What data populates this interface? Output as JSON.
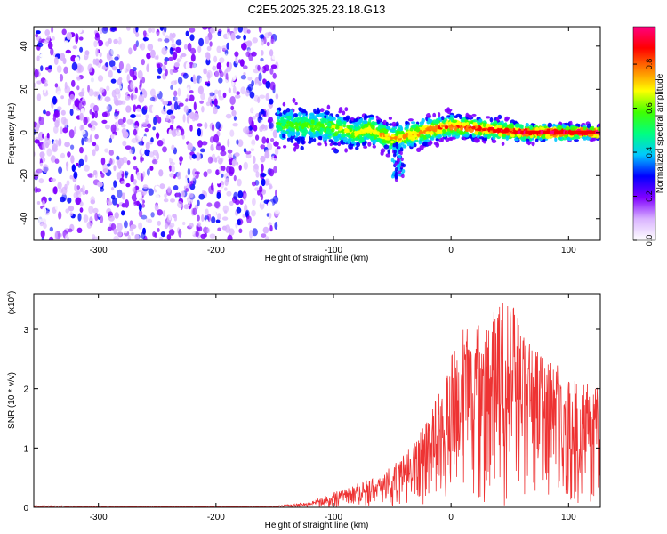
{
  "figure": {
    "title": "C2E5.2025.325.23.18.G13"
  },
  "chart_data": [
    {
      "type": "heatmap",
      "title": "C2E5.2025.325.23.18.G13",
      "xlabel": "Height of straight line (km)",
      "ylabel": "Frequency (Hz)",
      "xlim": [
        -355,
        127
      ],
      "ylim": [
        -50,
        49
      ],
      "xticks": [
        -300,
        -200,
        -100,
        0,
        100
      ],
      "yticks": [
        -40,
        -20,
        0,
        20,
        40
      ],
      "xtick_labels": [
        "-300",
        "-200",
        "-100",
        "0",
        "100"
      ],
      "ytick_labels": [
        "-40",
        "-20",
        "0",
        "20",
        "40"
      ],
      "colorbar": {
        "label": "Normalized spectral amplitude",
        "range": [
          0,
          0.97
        ],
        "ticks": [
          0,
          0.2,
          0.4,
          0.6,
          0.8
        ],
        "tick_labels": [
          "0.0",
          "0.2",
          "0.4",
          "0.6",
          "0.8"
        ],
        "colors": [
          "#ffffff",
          "#d9b3ff",
          "#8000ff",
          "#0000ff",
          "#00c8ff",
          "#00ff80",
          "#40ff00",
          "#ffff00",
          "#ff8000",
          "#ff0000",
          "#ff0080"
        ]
      },
      "regions": [
        {
          "name": "broadband noise",
          "x": [
            -355,
            -148
          ],
          "freq": [
            -50,
            49
          ],
          "amplitude": 0.2
        },
        {
          "name": "signal band",
          "x": [
            -148,
            127
          ],
          "freq_center": [
            [
              -148,
              4
            ],
            [
              -130,
              3
            ],
            [
              -110,
              3
            ],
            [
              -90,
              1
            ],
            [
              -80,
              -1
            ],
            [
              -70,
              2
            ],
            [
              -60,
              -1
            ],
            [
              -50,
              -3
            ],
            [
              -40,
              -2
            ],
            [
              -20,
              1
            ],
            [
              0,
              3
            ],
            [
              20,
              2
            ],
            [
              40,
              1
            ],
            [
              60,
              0
            ],
            [
              80,
              0
            ],
            [
              100,
              0
            ],
            [
              127,
              0
            ]
          ],
          "peak_amplitude": 0.95
        }
      ],
      "grid": false
    },
    {
      "type": "line",
      "xlabel": "Height of straight line (km)",
      "ylabel": "SNR (10 * v/v)",
      "scale_label": "(x10",
      "scale_exponent": "4",
      "xlim": [
        -355,
        127
      ],
      "ylim": [
        0,
        36000
      ],
      "xticks": [
        -300,
        -200,
        -100,
        0,
        100
      ],
      "yticks": [
        0,
        10000,
        20000,
        30000
      ],
      "xtick_labels": [
        "-300",
        "-200",
        "-100",
        "0",
        "100"
      ],
      "ytick_labels": [
        "0",
        "1",
        "2",
        "3"
      ],
      "series": [
        {
          "color": "#ee3333",
          "envelope": {
            "x": [
              -355,
              -300,
              -200,
              -150,
              -120,
              -100,
              -80,
              -60,
              -40,
              -30,
              -20,
              -10,
              0,
              10,
              20,
              30,
              40,
              48,
              55,
              70,
              90,
              110,
              127
            ],
            "y": [
              300,
              200,
              150,
              200,
              900,
              2500,
              4000,
              5500,
              9000,
              12000,
              15000,
              20000,
              26000,
              30000,
              31000,
              33500,
              34000,
              36000,
              33000,
              27000,
              24000,
              21500,
              21000
            ]
          }
        }
      ],
      "grid": false
    }
  ]
}
